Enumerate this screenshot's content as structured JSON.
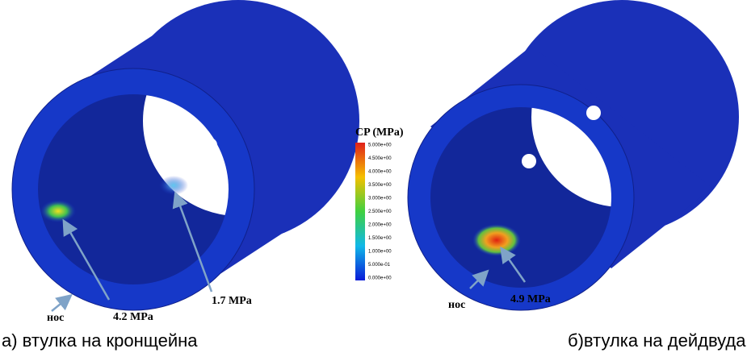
{
  "colorbar": {
    "title": "CP (MPa)",
    "labels": [
      "5.000e+00",
      "4.500e+00",
      "4.000e+00",
      "3.500e+00",
      "3.000e+00",
      "2.500e+00",
      "2.000e+00",
      "1.500e+00",
      "1.000e+00",
      "5.000e-01",
      "0.000e+00"
    ]
  },
  "left": {
    "annotations": [
      "4.2 MPa",
      "1.7 MPa"
    ],
    "nose": "нос",
    "caption": "а) втулка на кронщейна"
  },
  "right": {
    "annotations": [
      "4.9 MPa"
    ],
    "nose": "нос",
    "caption": "б)втулка на дейдвуда"
  }
}
